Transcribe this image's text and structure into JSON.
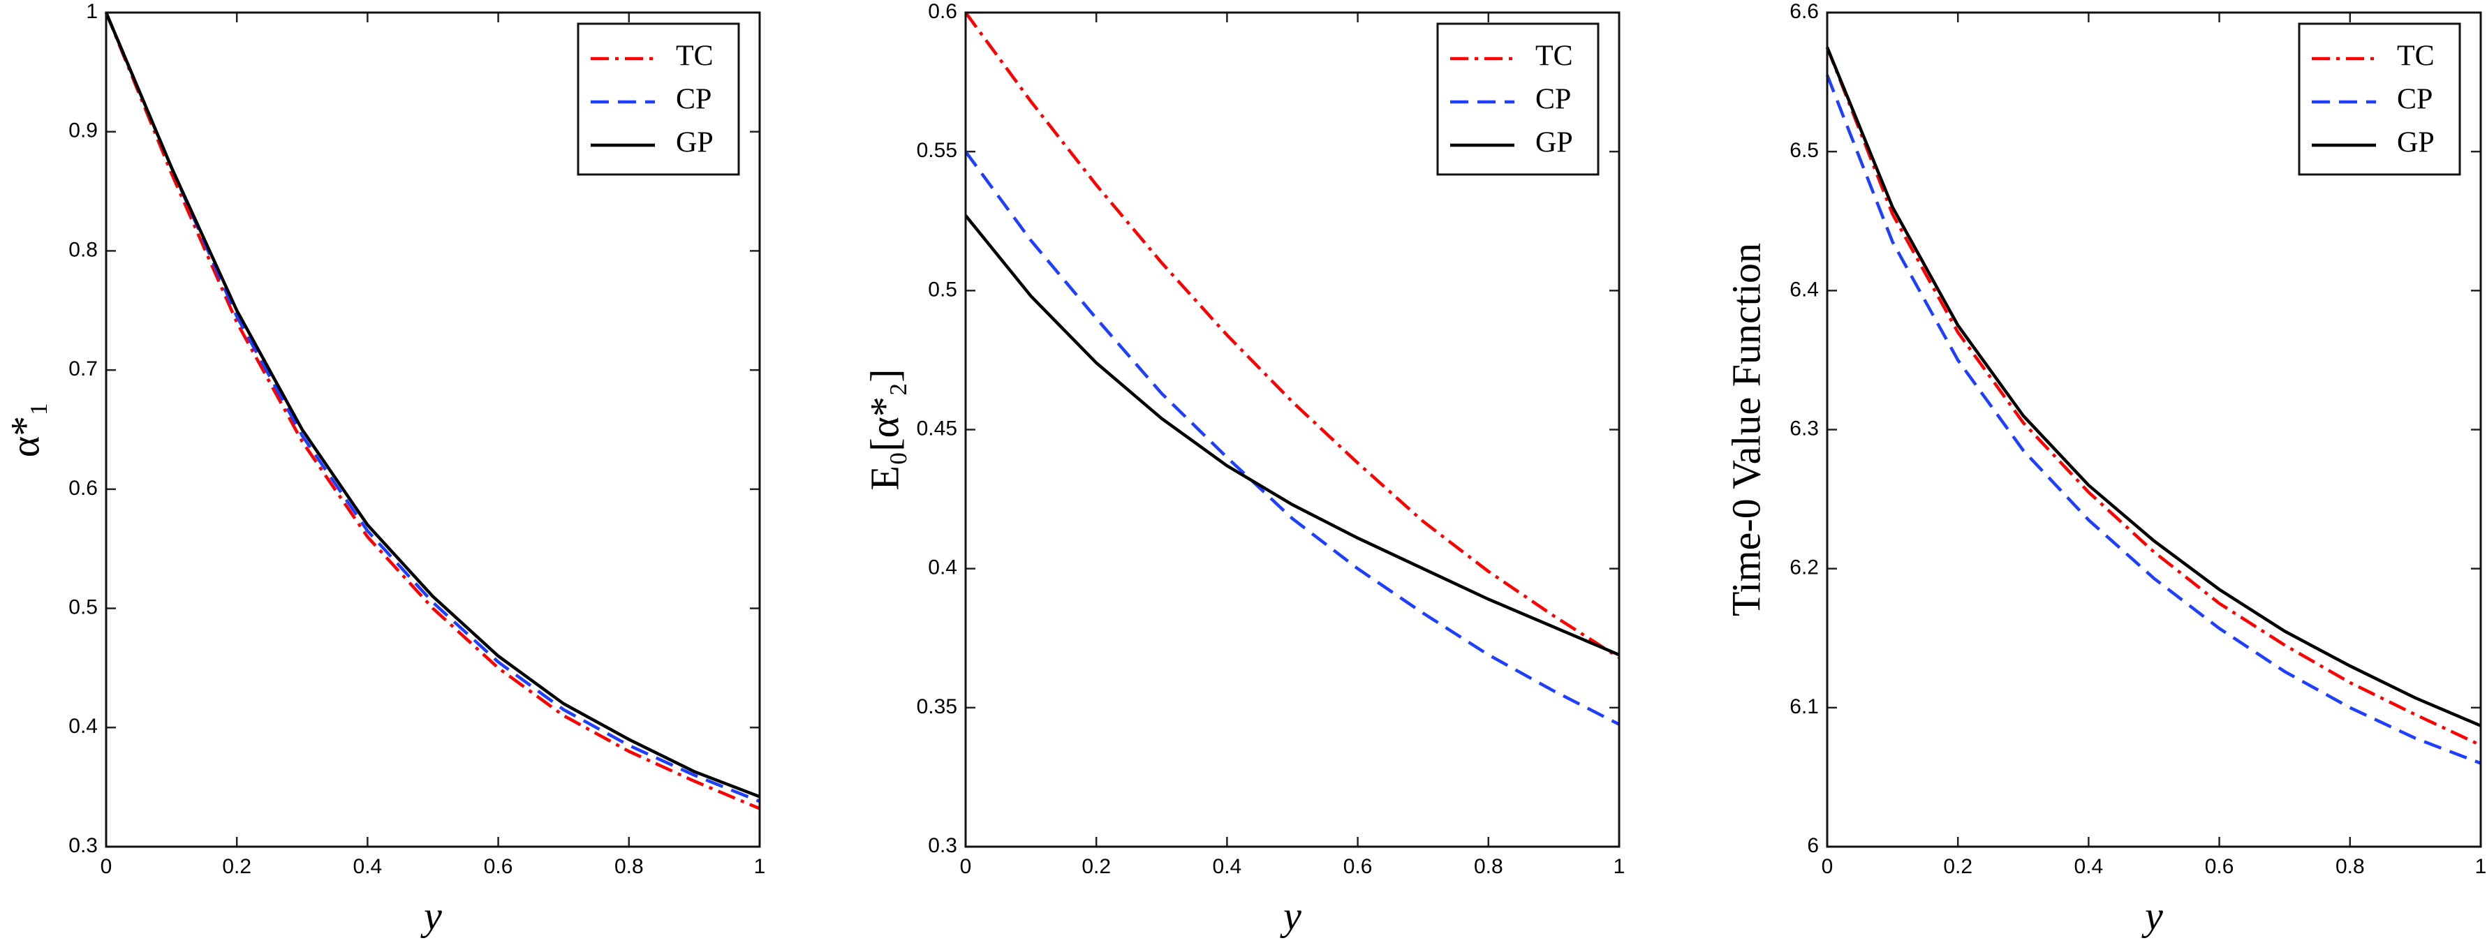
{
  "chart_data": [
    {
      "type": "line",
      "xlabel": "y",
      "ylabel": "α*₁",
      "x": [
        0,
        0.1,
        0.2,
        0.3,
        0.4,
        0.5,
        0.6,
        0.7,
        0.8,
        0.9,
        1
      ],
      "xlim": [
        0,
        1
      ],
      "xticks": [
        0,
        0.2,
        0.4,
        0.6,
        0.8,
        1
      ],
      "ylim": [
        0.3,
        1
      ],
      "yticks": [
        0.3,
        0.4,
        0.5,
        0.6,
        0.7,
        0.8,
        0.9,
        1
      ],
      "legend": "upper right",
      "series": [
        {
          "name": "TC",
          "color": "#ff0000",
          "style": "dash-dot",
          "values": [
            1.0,
            0.865,
            0.74,
            0.64,
            0.56,
            0.5,
            0.45,
            0.41,
            0.38,
            0.355,
            0.332
          ]
        },
        {
          "name": "CP",
          "color": "#1f3fff",
          "style": "dashed",
          "values": [
            1.0,
            0.87,
            0.745,
            0.645,
            0.565,
            0.505,
            0.455,
            0.415,
            0.385,
            0.36,
            0.338
          ]
        },
        {
          "name": "GP",
          "color": "#000000",
          "style": "solid",
          "values": [
            1.0,
            0.87,
            0.75,
            0.65,
            0.57,
            0.51,
            0.46,
            0.42,
            0.39,
            0.363,
            0.342
          ]
        }
      ]
    },
    {
      "type": "line",
      "xlabel": "y",
      "ylabel": "E₀[α*₂]",
      "x": [
        0,
        0.1,
        0.2,
        0.3,
        0.4,
        0.5,
        0.6,
        0.7,
        0.8,
        0.9,
        1
      ],
      "xlim": [
        0,
        1
      ],
      "xticks": [
        0,
        0.2,
        0.4,
        0.6,
        0.8,
        1
      ],
      "ylim": [
        0.3,
        0.6
      ],
      "yticks": [
        0.3,
        0.35,
        0.4,
        0.45,
        0.5,
        0.55,
        0.6
      ],
      "legend": "upper right",
      "series": [
        {
          "name": "TC",
          "color": "#ff0000",
          "style": "dash-dot",
          "values": [
            0.6,
            0.568,
            0.538,
            0.51,
            0.484,
            0.46,
            0.438,
            0.417,
            0.399,
            0.383,
            0.368
          ]
        },
        {
          "name": "CP",
          "color": "#1f3fff",
          "style": "dashed",
          "values": [
            0.55,
            0.518,
            0.49,
            0.463,
            0.44,
            0.418,
            0.4,
            0.384,
            0.369,
            0.356,
            0.344
          ]
        },
        {
          "name": "GP",
          "color": "#000000",
          "style": "solid",
          "values": [
            0.527,
            0.498,
            0.474,
            0.454,
            0.437,
            0.423,
            0.411,
            0.4,
            0.389,
            0.379,
            0.369
          ]
        }
      ]
    },
    {
      "type": "line",
      "xlabel": "y",
      "ylabel": "Time-0 Value Function",
      "x": [
        0,
        0.1,
        0.2,
        0.3,
        0.4,
        0.5,
        0.6,
        0.7,
        0.8,
        0.9,
        1
      ],
      "xlim": [
        0,
        1
      ],
      "xticks": [
        0,
        0.2,
        0.4,
        0.6,
        0.8,
        1
      ],
      "ylim": [
        6,
        6.6
      ],
      "yticks": [
        6,
        6.1,
        6.2,
        6.3,
        6.4,
        6.5,
        6.6
      ],
      "legend": "upper right",
      "series": [
        {
          "name": "TC",
          "color": "#ff0000",
          "style": "dash-dot",
          "values": [
            6.575,
            6.455,
            6.37,
            6.305,
            6.255,
            6.212,
            6.175,
            6.145,
            6.118,
            6.095,
            6.073
          ]
        },
        {
          "name": "CP",
          "color": "#1f3fff",
          "style": "dashed",
          "values": [
            6.555,
            6.435,
            6.35,
            6.285,
            6.235,
            6.193,
            6.157,
            6.126,
            6.1,
            6.078,
            6.06
          ]
        },
        {
          "name": "GP",
          "color": "#000000",
          "style": "solid",
          "values": [
            6.575,
            6.46,
            6.375,
            6.31,
            6.26,
            6.22,
            6.185,
            6.155,
            6.13,
            6.107,
            6.087
          ]
        }
      ]
    }
  ]
}
